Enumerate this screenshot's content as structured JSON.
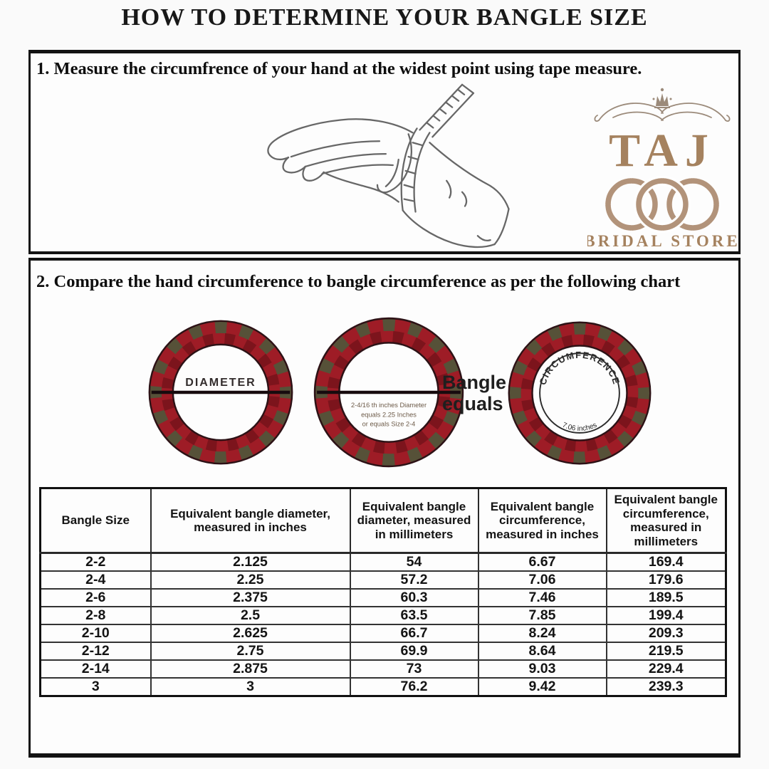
{
  "page": {
    "title": "HOW TO DETERMINE YOUR BANGLE SIZE"
  },
  "steps": {
    "step1": "1. Measure the circumfrence of your hand at the widest point using tape measure.",
    "step2": "2. Compare the hand circumference to bangle circumference as per the following chart"
  },
  "logo": {
    "brand": "TAJ",
    "subtitle": "BRIDAL STORE",
    "brand_color": "#a5825f",
    "ring_color": "#b2937a",
    "flourish_color": "#9b8a7a"
  },
  "diagram": {
    "diameter_label": "DIAMETER",
    "bangle2_caption": [
      "2-4/16 th inches Diameter",
      "equals 2.25 Inches",
      "or equals Size 2-4"
    ],
    "equals_label": "Bangle equals",
    "circumference_label": "CIRCUMFERENCE",
    "circumference_value": "7.06 inches",
    "ring_red": "#9e1c26",
    "ring_dark_red": "#7c141c",
    "ring_olive": "#565138",
    "ring_outline": "#2d1216"
  },
  "table": {
    "headers": [
      "Bangle Size",
      "Equivalent bangle diameter, measured in inches",
      "Equivalent bangle diameter, measured in millimeters",
      "Equivalent bangle circumference, measured in inches",
      "Equivalent bangle circumference, measured in millimeters"
    ],
    "rows": [
      [
        "2-2",
        "2.125",
        "54",
        "6.67",
        "169.4"
      ],
      [
        "2-4",
        "2.25",
        "57.2",
        "7.06",
        "179.6"
      ],
      [
        "2-6",
        "2.375",
        "60.3",
        "7.46",
        "189.5"
      ],
      [
        "2-8",
        "2.5",
        "63.5",
        "7.85",
        "199.4"
      ],
      [
        "2-10",
        "2.625",
        "66.7",
        "8.24",
        "209.3"
      ],
      [
        "2-12",
        "2.75",
        "69.9",
        "8.64",
        "219.5"
      ],
      [
        "2-14",
        "2.875",
        "73",
        "9.03",
        "229.4"
      ],
      [
        "3",
        "3",
        "76.2",
        "9.42",
        "239.3"
      ]
    ]
  }
}
